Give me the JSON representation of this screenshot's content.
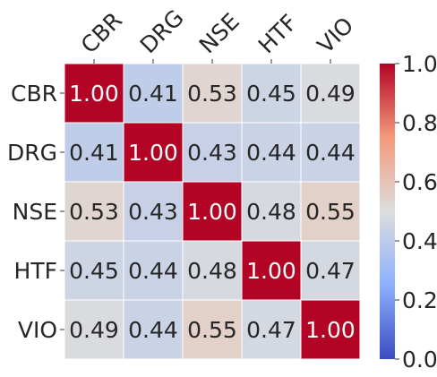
{
  "chart_data": {
    "type": "heatmap",
    "row_labels": [
      "CBR",
      "DRG",
      "NSE",
      "HTF",
      "VIO"
    ],
    "col_labels": [
      "CBR",
      "DRG",
      "NSE",
      "HTF",
      "VIO"
    ],
    "values": [
      [
        1.0,
        0.41,
        0.53,
        0.45,
        0.49
      ],
      [
        0.41,
        1.0,
        0.43,
        0.44,
        0.44
      ],
      [
        0.53,
        0.43,
        1.0,
        0.48,
        0.55
      ],
      [
        0.45,
        0.44,
        0.48,
        1.0,
        0.47
      ],
      [
        0.49,
        0.44,
        0.55,
        0.47,
        1.0
      ]
    ],
    "value_format": "2 decimals",
    "colormap": "coolwarm",
    "vmin": 0.0,
    "vmax": 1.0,
    "colorbar_ticks": [
      0.0,
      0.2,
      0.4,
      0.6,
      0.8,
      1.0
    ],
    "grid": true
  }
}
